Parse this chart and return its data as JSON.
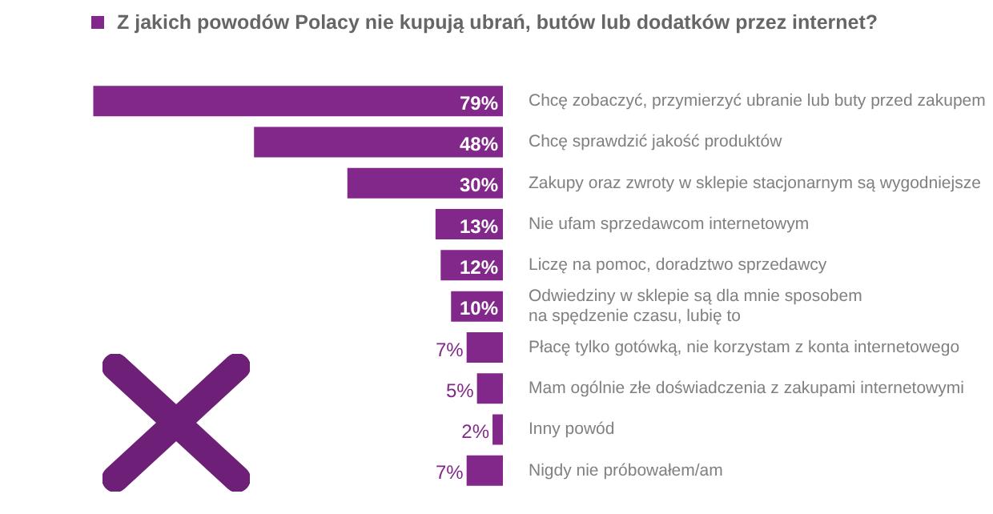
{
  "chart_data": {
    "type": "bar",
    "orientation": "horizontal",
    "title": "Z jakich powodów Polacy nie kupują ubrań, butów lub dodatków przez internet?",
    "categories": [
      "Chcę zobaczyć, przymierzyć ubranie lub buty przed zakupem",
      "Chcę sprawdzić jakość produktów",
      "Zakupy oraz zwroty w sklepie stacjonarnym są wygodniejsze",
      "Nie ufam sprzedawcom internetowym",
      "Liczę na pomoc, doradztwo sprzedawcy",
      "Odwiedziny w sklepie są dla mnie sposobem na spędzenie czasu, lubię to",
      "Płacę tylko gotówką, nie korzystam z konta internetowego",
      "Mam ogólnie złe doświadczenia z zakupami internetowymi",
      "Inny powód",
      "Nigdy nie próbowałem/am"
    ],
    "values": [
      79,
      48,
      30,
      13,
      12,
      10,
      7,
      5,
      2,
      7
    ],
    "value_labels": [
      "79%",
      "48%",
      "30%",
      "13%",
      "12%",
      "10%",
      "7%",
      "5%",
      "2%",
      "7%"
    ],
    "color": "#82288a",
    "grid": false,
    "legend": false
  }
}
